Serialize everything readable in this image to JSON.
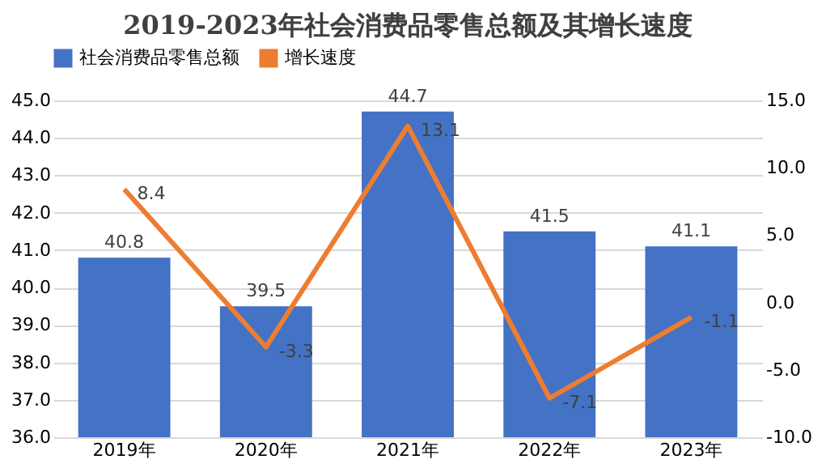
{
  "chart_data": {
    "type": "bar",
    "title": "2019-2023年社会消费品零售总额及其增长速度",
    "categories": [
      "2019年",
      "2020年",
      "2021年",
      "2022年",
      "2023年"
    ],
    "series": [
      {
        "name": "社会消费品零售总额",
        "color": "#4472c4",
        "values": [
          40.8,
          39.5,
          44.7,
          41.5,
          41.1
        ]
      },
      {
        "name": "增长速度",
        "type": "line",
        "axis": "y2",
        "color": "#ed7d31",
        "values": [
          8.4,
          -3.3,
          13.1,
          -7.1,
          -1.1
        ]
      }
    ],
    "ylim": [
      36,
      45
    ],
    "yticks": [
      {
        "value": 36,
        "label": "36.0"
      },
      {
        "value": 37,
        "label": "37.0"
      },
      {
        "value": 38,
        "label": "38.0"
      },
      {
        "value": 39,
        "label": "39.0"
      },
      {
        "value": 40,
        "label": "40.0"
      },
      {
        "value": 41,
        "label": "41.0"
      },
      {
        "value": 42,
        "label": "42.0"
      },
      {
        "value": 43,
        "label": "43.0"
      },
      {
        "value": 44,
        "label": "44.0"
      },
      {
        "value": 45,
        "label": "45.0"
      }
    ],
    "y2lim": [
      -10,
      15
    ],
    "y2ticks": [
      {
        "value": -10,
        "label": "-10.0"
      },
      {
        "value": -5,
        "label": "-5.0"
      },
      {
        "value": 0,
        "label": "0.0"
      },
      {
        "value": 5,
        "label": "5.0"
      },
      {
        "value": 10,
        "label": "10.0"
      },
      {
        "value": 15,
        "label": "15.0"
      }
    ],
    "grid": "y",
    "legend": "top",
    "data_labels": true,
    "marker": "none",
    "line_style": "solid"
  }
}
